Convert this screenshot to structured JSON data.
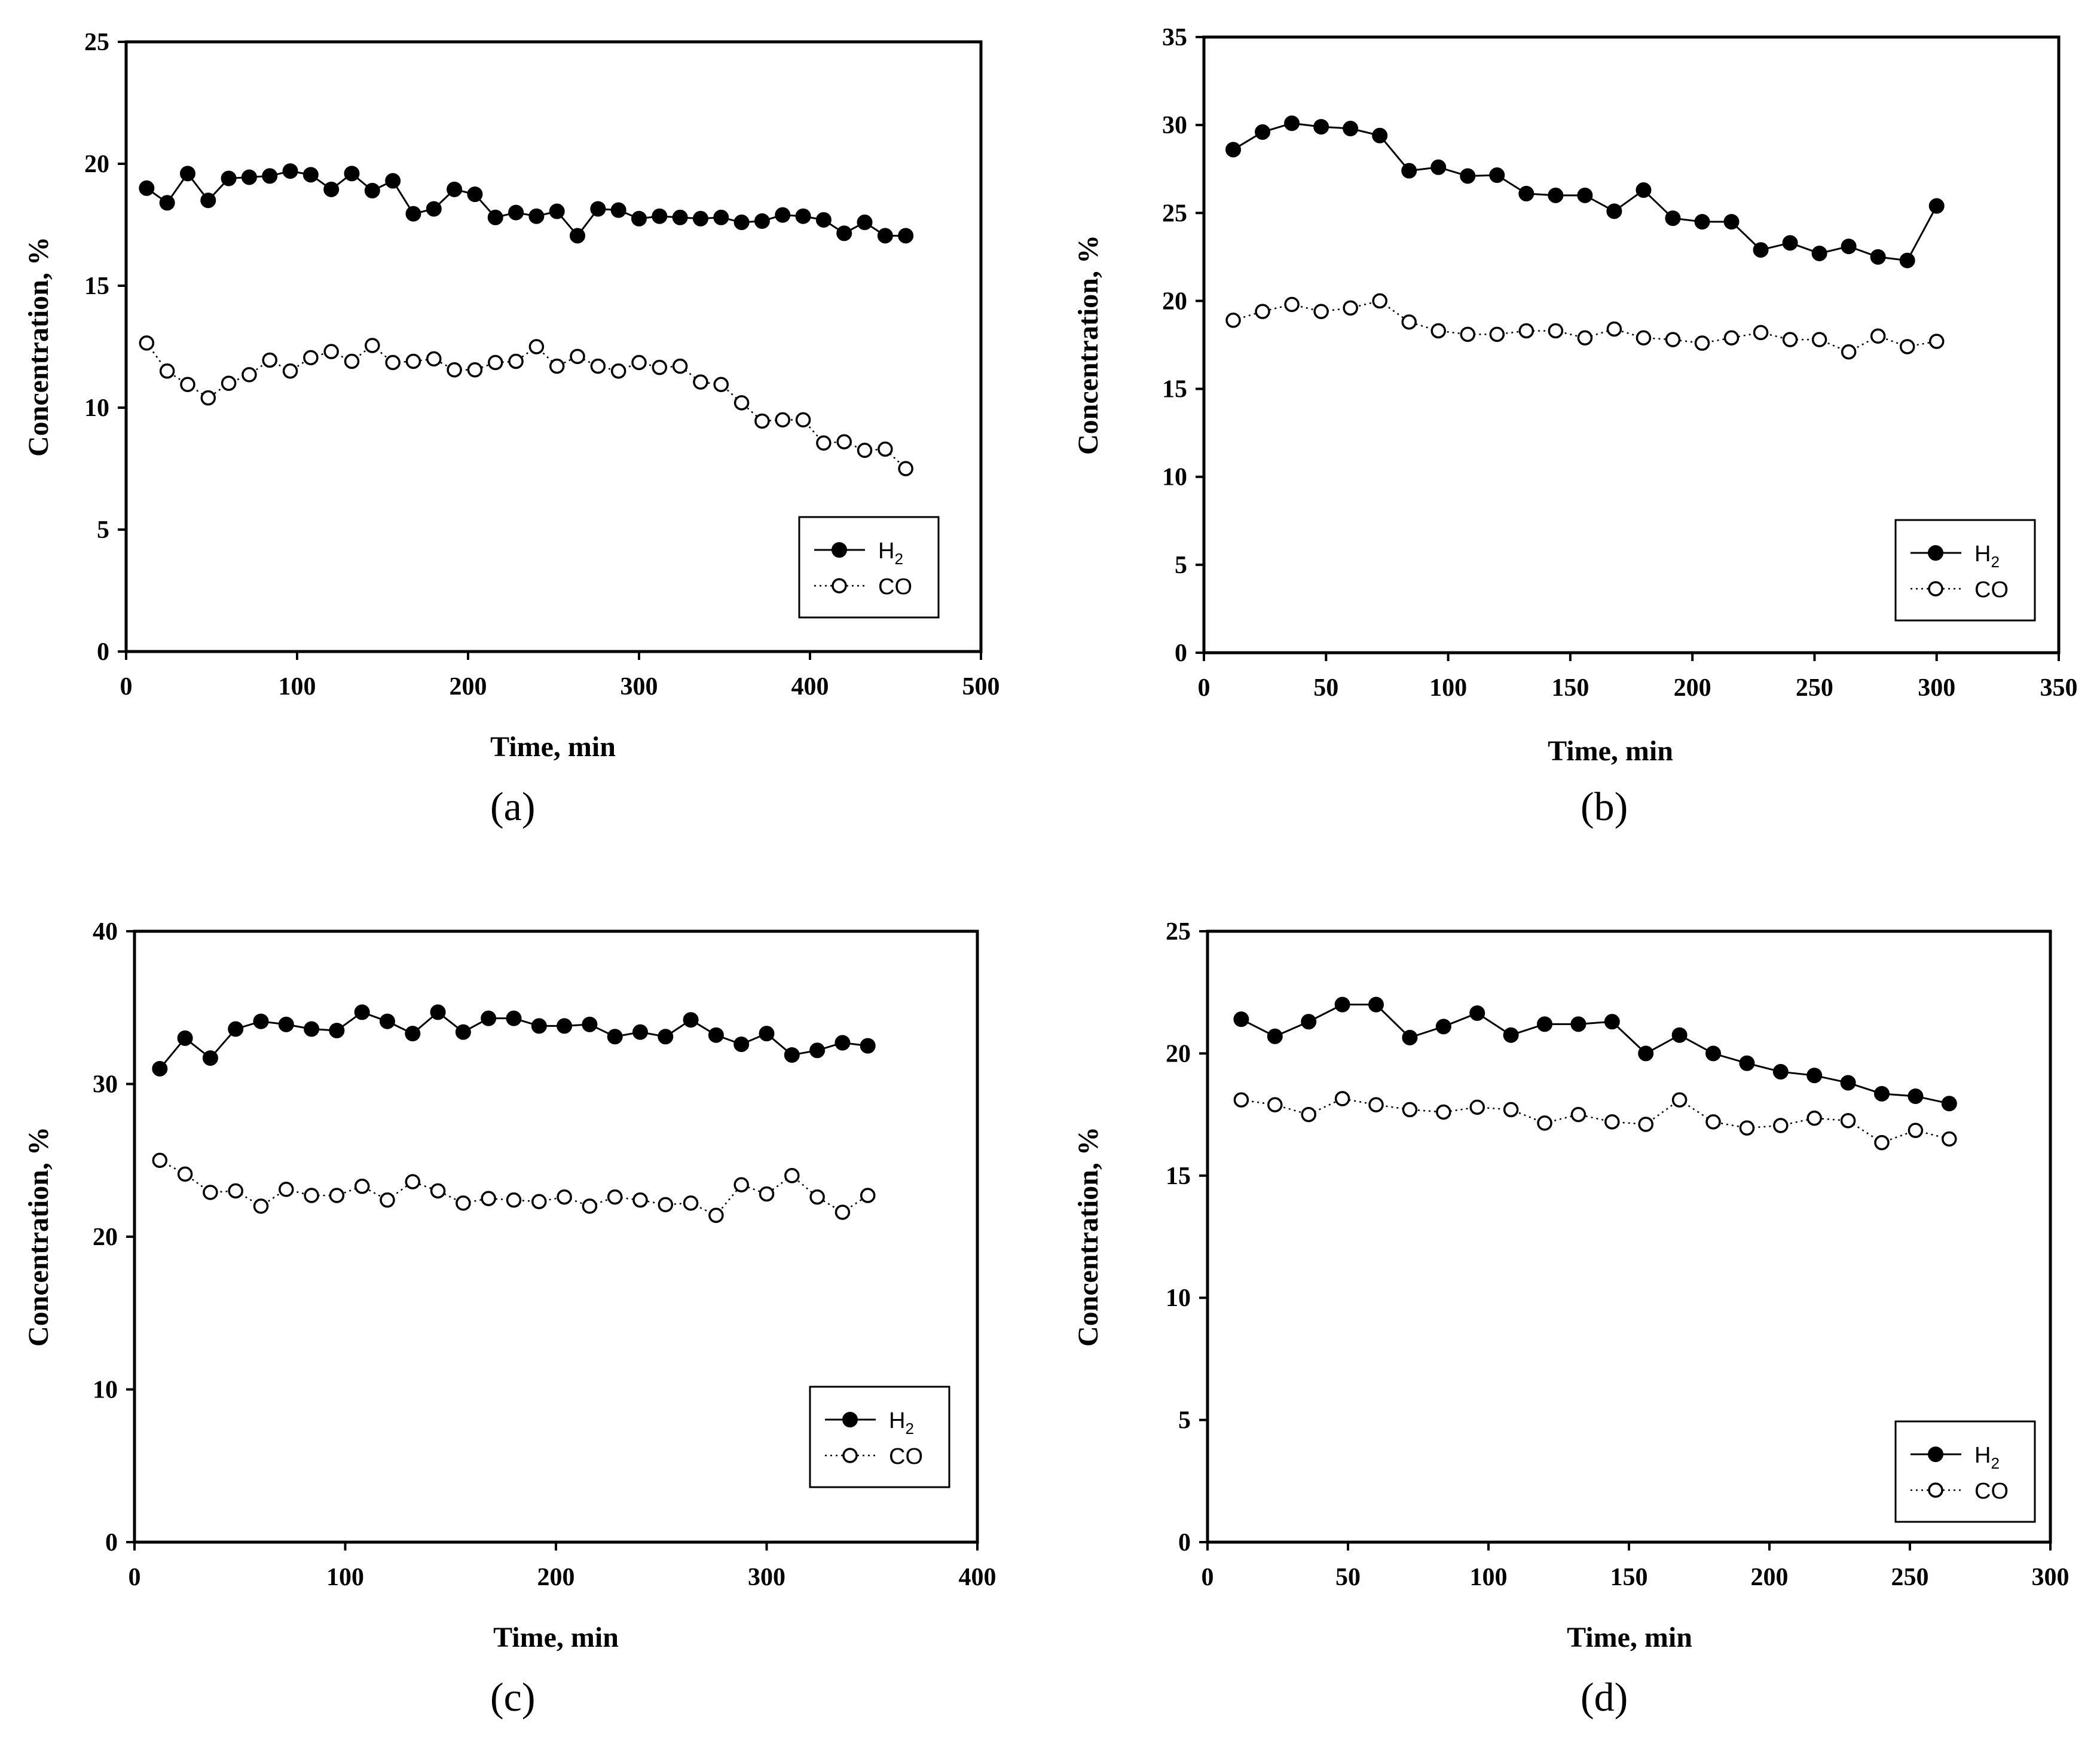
{
  "legend": {
    "h2_main": "H",
    "h2_sub": "2",
    "co": "CO"
  },
  "chart_data": [
    {
      "type": "line",
      "caption": "(a)",
      "xlabel": "Time, min",
      "ylabel": "Concentration, %",
      "xlim": [
        0,
        500
      ],
      "ylim": [
        0,
        25
      ],
      "xticks": [
        0,
        100,
        200,
        300,
        400,
        500
      ],
      "yticks": [
        0,
        5,
        10,
        15,
        20,
        25
      ],
      "series": [
        {
          "name": "H2",
          "marker": "filled-circle",
          "line": "solid",
          "x": [
            12,
            24,
            36,
            48,
            60,
            72,
            84,
            96,
            108,
            120,
            132,
            144,
            156,
            168,
            180,
            192,
            204,
            216,
            228,
            240,
            252,
            264,
            276,
            288,
            300,
            312,
            324,
            336,
            348,
            360,
            372,
            384,
            396,
            408,
            420,
            432,
            444,
            456
          ],
          "y": [
            19.0,
            18.4,
            19.6,
            18.5,
            19.4,
            19.45,
            19.5,
            19.7,
            19.55,
            18.95,
            19.6,
            18.9,
            19.3,
            17.95,
            18.15,
            18.95,
            18.75,
            17.8,
            18.0,
            17.85,
            18.05,
            17.05,
            18.15,
            18.1,
            17.75,
            17.85,
            17.8,
            17.75,
            17.8,
            17.6,
            17.65,
            17.9,
            17.85,
            17.7,
            17.15,
            17.6,
            17.05,
            17.05
          ]
        },
        {
          "name": "CO",
          "marker": "open-circle",
          "line": "dotted",
          "x": [
            12,
            24,
            36,
            48,
            60,
            72,
            84,
            96,
            108,
            120,
            132,
            144,
            156,
            168,
            180,
            192,
            204,
            216,
            228,
            240,
            252,
            264,
            276,
            288,
            300,
            312,
            324,
            336,
            348,
            360,
            372,
            384,
            396,
            408,
            420,
            432,
            444,
            456
          ],
          "y": [
            12.65,
            11.5,
            10.95,
            10.4,
            11.0,
            11.35,
            11.95,
            11.5,
            12.05,
            12.3,
            11.9,
            12.55,
            11.85,
            11.9,
            12.0,
            11.55,
            11.55,
            11.85,
            11.9,
            12.5,
            11.7,
            12.1,
            11.7,
            11.5,
            11.85,
            11.65,
            11.7,
            11.05,
            10.95,
            10.2,
            9.45,
            9.5,
            9.5,
            8.55,
            8.6,
            8.25,
            8.3,
            7.5
          ]
        }
      ]
    },
    {
      "type": "line",
      "caption": "(b)",
      "xlabel": "Time, min",
      "ylabel": "Concentration, %",
      "xlim": [
        0,
        350
      ],
      "ylim": [
        0,
        35
      ],
      "xticks": [
        0,
        50,
        100,
        150,
        200,
        250,
        300,
        350
      ],
      "yticks": [
        0,
        5,
        10,
        15,
        20,
        25,
        30,
        35
      ],
      "series": [
        {
          "name": "H2",
          "marker": "filled-circle",
          "line": "solid",
          "x": [
            12,
            24,
            36,
            48,
            60,
            72,
            84,
            96,
            108,
            120,
            132,
            144,
            156,
            168,
            180,
            192,
            204,
            216,
            228,
            240,
            252,
            264,
            276,
            288,
            300
          ],
          "y": [
            28.6,
            29.6,
            30.1,
            29.9,
            29.8,
            29.4,
            27.4,
            27.6,
            27.1,
            27.15,
            26.1,
            26.0,
            26.0,
            25.1,
            26.3,
            24.7,
            24.5,
            24.5,
            22.9,
            23.3,
            22.7,
            23.1,
            22.5,
            22.3,
            25.4
          ]
        },
        {
          "name": "CO",
          "marker": "open-circle",
          "line": "dotted",
          "x": [
            12,
            24,
            36,
            48,
            60,
            72,
            84,
            96,
            108,
            120,
            132,
            144,
            156,
            168,
            180,
            192,
            204,
            216,
            228,
            240,
            252,
            264,
            276,
            288,
            300
          ],
          "y": [
            18.9,
            19.4,
            19.8,
            19.4,
            19.6,
            20.0,
            18.8,
            18.3,
            18.1,
            18.1,
            18.3,
            18.3,
            17.9,
            18.4,
            17.9,
            17.8,
            17.6,
            17.9,
            18.2,
            17.8,
            17.8,
            17.1,
            18.0,
            17.4,
            17.7
          ]
        }
      ]
    },
    {
      "type": "line",
      "caption": "(c)",
      "xlabel": "Time, min",
      "ylabel": "Concentration, %",
      "xlim": [
        0,
        400
      ],
      "ylim": [
        0,
        40
      ],
      "xticks": [
        0,
        100,
        200,
        300,
        400
      ],
      "yticks": [
        0,
        10,
        20,
        30,
        40
      ],
      "series": [
        {
          "name": "H2",
          "marker": "filled-circle",
          "line": "solid",
          "x": [
            12,
            24,
            36,
            48,
            60,
            72,
            84,
            96,
            108,
            120,
            132,
            144,
            156,
            168,
            180,
            192,
            204,
            216,
            228,
            240,
            252,
            264,
            276,
            288,
            300,
            312,
            324,
            336,
            348
          ],
          "y": [
            31.0,
            33.0,
            31.7,
            33.6,
            34.1,
            33.9,
            33.6,
            33.5,
            34.7,
            34.1,
            33.3,
            34.7,
            33.4,
            34.3,
            34.3,
            33.8,
            33.8,
            33.9,
            33.1,
            33.4,
            33.1,
            34.2,
            33.2,
            32.6,
            33.3,
            31.9,
            32.2,
            32.7,
            32.5
          ]
        },
        {
          "name": "CO",
          "marker": "open-circle",
          "line": "dotted",
          "x": [
            12,
            24,
            36,
            48,
            60,
            72,
            84,
            96,
            108,
            120,
            132,
            144,
            156,
            168,
            180,
            192,
            204,
            216,
            228,
            240,
            252,
            264,
            276,
            288,
            300,
            312,
            324,
            336,
            348
          ],
          "y": [
            25.0,
            24.1,
            22.9,
            23.0,
            22.0,
            23.1,
            22.7,
            22.7,
            23.3,
            22.4,
            23.6,
            23.0,
            22.2,
            22.5,
            22.4,
            22.3,
            22.6,
            22.0,
            22.6,
            22.4,
            22.1,
            22.2,
            21.4,
            23.4,
            22.8,
            24.0,
            22.6,
            21.6,
            22.7
          ]
        }
      ]
    },
    {
      "type": "line",
      "caption": "(d)",
      "xlabel": "Time, min",
      "ylabel": "Concentration, %",
      "xlim": [
        0,
        300
      ],
      "ylim": [
        0,
        25
      ],
      "xticks": [
        0,
        50,
        100,
        150,
        200,
        250,
        300
      ],
      "yticks": [
        0,
        5,
        10,
        15,
        20,
        25
      ],
      "series": [
        {
          "name": "H2",
          "marker": "filled-circle",
          "line": "solid",
          "x": [
            12,
            24,
            36,
            48,
            60,
            72,
            84,
            96,
            108,
            120,
            132,
            144,
            156,
            168,
            180,
            192,
            204,
            216,
            228,
            240,
            252,
            264
          ],
          "y": [
            21.4,
            20.7,
            21.3,
            22.0,
            22.0,
            20.65,
            21.1,
            21.65,
            20.75,
            21.2,
            21.2,
            21.3,
            20.0,
            20.75,
            20.0,
            19.6,
            19.25,
            19.1,
            18.8,
            18.35,
            18.25,
            17.95
          ]
        },
        {
          "name": "CO",
          "marker": "open-circle",
          "line": "dotted",
          "x": [
            12,
            24,
            36,
            48,
            60,
            72,
            84,
            96,
            108,
            120,
            132,
            144,
            156,
            168,
            180,
            192,
            204,
            216,
            228,
            240,
            252,
            264
          ],
          "y": [
            18.1,
            17.9,
            17.5,
            18.15,
            17.9,
            17.7,
            17.6,
            17.8,
            17.7,
            17.15,
            17.5,
            17.2,
            17.1,
            18.1,
            17.2,
            16.95,
            17.05,
            17.35,
            17.25,
            16.35,
            16.85,
            16.5
          ]
        }
      ]
    }
  ]
}
